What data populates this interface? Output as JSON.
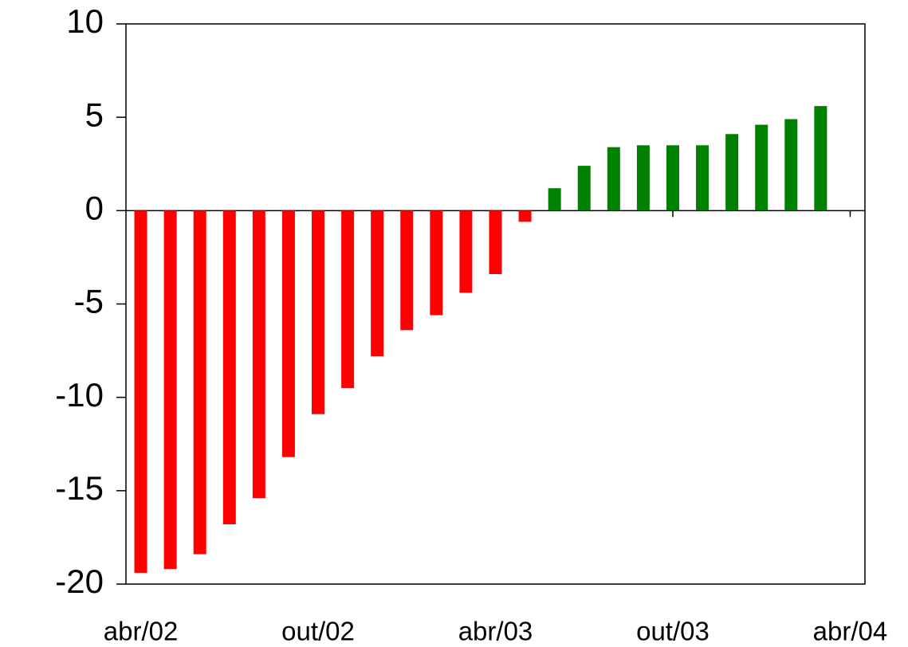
{
  "chart_data": {
    "type": "bar",
    "x": [
      0,
      1,
      2,
      3,
      4,
      5,
      6,
      7,
      8,
      9,
      10,
      11,
      12,
      13,
      14,
      15,
      16,
      17,
      18,
      19,
      20,
      21,
      22,
      23
    ],
    "values": [
      -19.4,
      -19.2,
      -18.4,
      -16.8,
      -15.4,
      -13.2,
      -10.9,
      -9.5,
      -7.8,
      -6.4,
      -5.6,
      -4.4,
      -3.4,
      -0.6,
      1.2,
      2.4,
      3.4,
      3.5,
      3.5,
      3.5,
      4.1,
      4.6,
      4.9,
      5.6
    ],
    "color_negative": "#ff0000",
    "color_positive": "#008000",
    "xlim": [
      -0.5,
      24.5
    ],
    "xticks": [
      {
        "value": 0,
        "label": "abr/02"
      },
      {
        "value": 6,
        "label": "out/02"
      },
      {
        "value": 12,
        "label": "abr/03"
      },
      {
        "value": 18,
        "label": "out/03"
      },
      {
        "value": 24,
        "label": "abr/04"
      }
    ],
    "ylim": [
      -20,
      10
    ],
    "yticks": [
      -20,
      -15,
      -10,
      -5,
      0,
      5,
      10
    ]
  }
}
